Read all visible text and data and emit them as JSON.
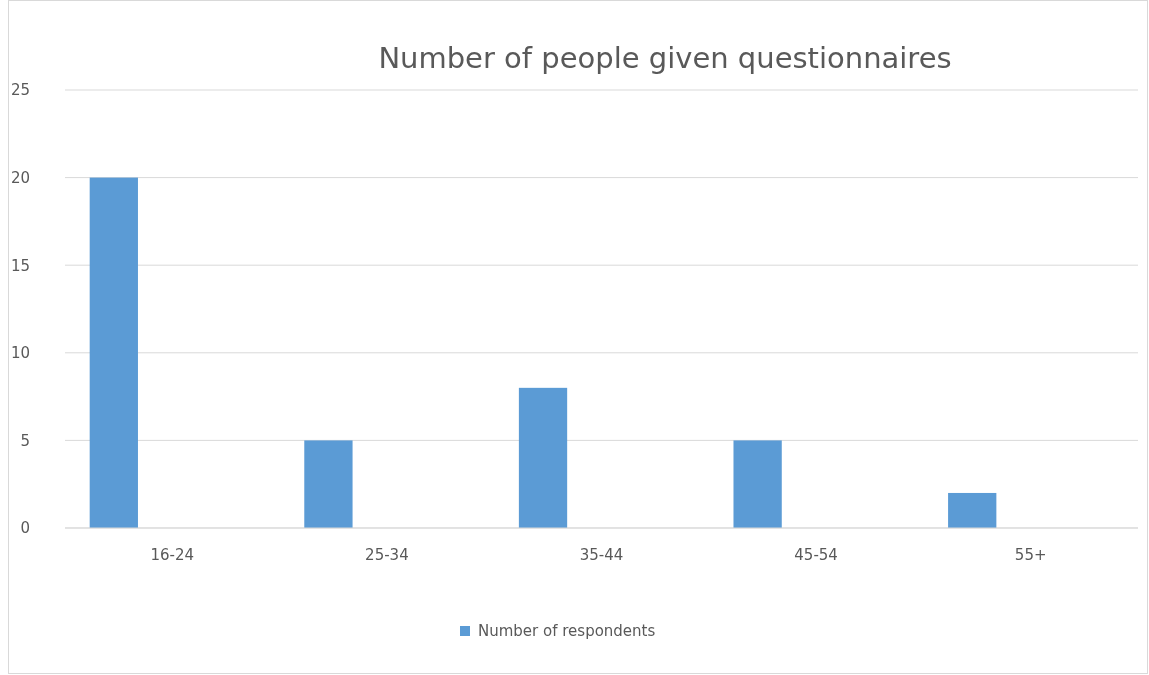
{
  "chart_data": {
    "type": "bar",
    "title": "Number of people given questionnaires",
    "categories": [
      "16-24",
      "25-34",
      "35-44",
      "45-54",
      "55+"
    ],
    "series": [
      {
        "name": "Number of respondents",
        "color": "#5b9bd5",
        "values": [
          20,
          5,
          8,
          5,
          2
        ]
      }
    ],
    "ylim": [
      0,
      25
    ],
    "yticks": [
      0,
      5,
      10,
      15,
      20,
      25
    ],
    "grid": "y",
    "legend": "bottom"
  }
}
